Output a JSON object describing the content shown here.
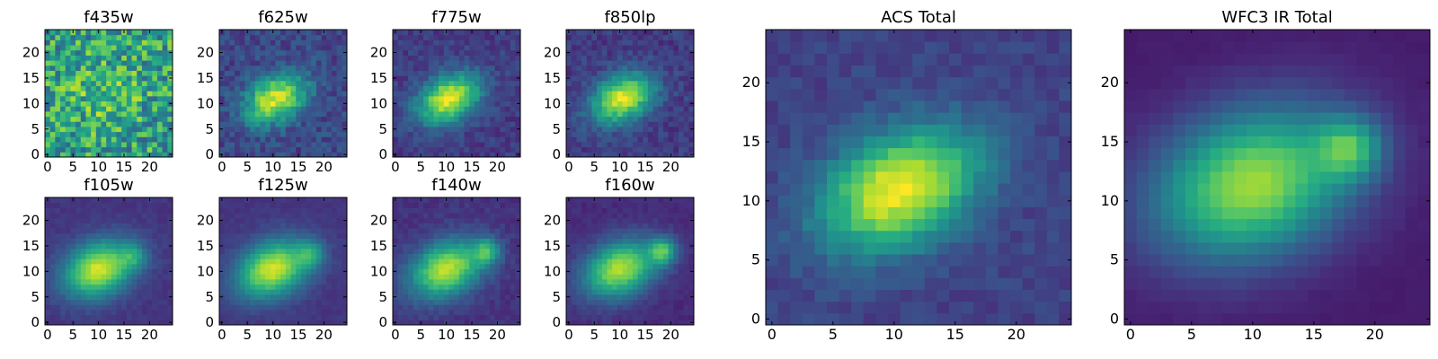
{
  "chart_data": {
    "type": "heatmap",
    "colormap": "viridis",
    "grid": false,
    "panels": [
      {
        "title": "f435w",
        "size": "small",
        "xlim": [
          0,
          24
        ],
        "ylim": [
          0,
          24
        ],
        "xticks": [
          0,
          5,
          10,
          15,
          20
        ],
        "yticks": [
          0,
          5,
          10,
          15,
          20
        ],
        "peak": {
          "x": 11,
          "y": 12
        },
        "peak_amp": 0.12,
        "spread": [
          6,
          4
        ],
        "angle_deg": -25,
        "noise": 0.55,
        "base": 0.58,
        "companion": null
      },
      {
        "title": "f625w",
        "size": "small",
        "xlim": [
          0,
          24
        ],
        "ylim": [
          0,
          24
        ],
        "xticks": [
          0,
          5,
          10,
          15,
          20
        ],
        "yticks": [
          0,
          5,
          10,
          15,
          20
        ],
        "peak": {
          "x": 10.5,
          "y": 11
        },
        "peak_amp": 0.72,
        "spread": [
          4.5,
          3
        ],
        "angle_deg": -28,
        "noise": 0.2,
        "base": 0.22,
        "companion": null
      },
      {
        "title": "f775w",
        "size": "small",
        "xlim": [
          0,
          24
        ],
        "ylim": [
          0,
          24
        ],
        "xticks": [
          0,
          5,
          10,
          15,
          20
        ],
        "yticks": [
          0,
          5,
          10,
          15,
          20
        ],
        "peak": {
          "x": 10.5,
          "y": 11
        },
        "peak_amp": 0.8,
        "spread": [
          4.5,
          3
        ],
        "angle_deg": -28,
        "noise": 0.14,
        "base": 0.18,
        "companion": null
      },
      {
        "title": "f850lp",
        "size": "small",
        "xlim": [
          0,
          24
        ],
        "ylim": [
          0,
          24
        ],
        "xticks": [
          0,
          5,
          10,
          15,
          20
        ],
        "yticks": [
          0,
          5,
          10,
          15,
          20
        ],
        "peak": {
          "x": 10.5,
          "y": 11
        },
        "peak_amp": 0.78,
        "spread": [
          4.5,
          3
        ],
        "angle_deg": -28,
        "noise": 0.15,
        "base": 0.18,
        "companion": null
      },
      {
        "title": "f105w",
        "size": "small",
        "xlim": [
          0,
          24
        ],
        "ylim": [
          0,
          24
        ],
        "xticks": [
          0,
          5,
          10,
          15,
          20
        ],
        "yticks": [
          0,
          5,
          10,
          15,
          20
        ],
        "peak": {
          "x": 10,
          "y": 10.5
        },
        "peak_amp": 0.78,
        "spread": [
          5,
          3.6
        ],
        "angle_deg": -25,
        "noise": 0.06,
        "base": 0.16,
        "companion": {
          "x": 17,
          "y": 13,
          "amp": 0.25
        }
      },
      {
        "title": "f125w",
        "size": "small",
        "xlim": [
          0,
          24
        ],
        "ylim": [
          0,
          24
        ],
        "xticks": [
          0,
          5,
          10,
          15,
          20
        ],
        "yticks": [
          0,
          5,
          10,
          15,
          20
        ],
        "peak": {
          "x": 10,
          "y": 10.5
        },
        "peak_amp": 0.78,
        "spread": [
          5.2,
          3.6
        ],
        "angle_deg": -25,
        "noise": 0.05,
        "base": 0.16,
        "companion": {
          "x": 17.5,
          "y": 13.5,
          "amp": 0.3
        }
      },
      {
        "title": "f140w",
        "size": "small",
        "xlim": [
          0,
          24
        ],
        "ylim": [
          0,
          24
        ],
        "xticks": [
          0,
          5,
          10,
          15,
          20
        ],
        "yticks": [
          0,
          5,
          10,
          15,
          20
        ],
        "peak": {
          "x": 10,
          "y": 10.5
        },
        "peak_amp": 0.76,
        "spread": [
          5.2,
          3.6
        ],
        "angle_deg": -25,
        "noise": 0.08,
        "base": 0.15,
        "companion": {
          "x": 18,
          "y": 14,
          "amp": 0.42
        }
      },
      {
        "title": "f160w",
        "size": "small",
        "xlim": [
          0,
          24
        ],
        "ylim": [
          0,
          24
        ],
        "xticks": [
          0,
          5,
          10,
          15,
          20
        ],
        "yticks": [
          0,
          5,
          10,
          15,
          20
        ],
        "peak": {
          "x": 10,
          "y": 10.5
        },
        "peak_amp": 0.76,
        "spread": [
          5.2,
          3.6
        ],
        "angle_deg": -25,
        "noise": 0.06,
        "base": 0.13,
        "companion": {
          "x": 18.5,
          "y": 14,
          "amp": 0.5
        }
      },
      {
        "title": "ACS Total",
        "size": "large",
        "xlim": [
          0,
          24
        ],
        "ylim": [
          0,
          24
        ],
        "xticks": [
          0,
          5,
          10,
          15,
          20
        ],
        "yticks": [
          0,
          5,
          10,
          15,
          20
        ],
        "peak": {
          "x": 10.5,
          "y": 11
        },
        "peak_amp": 0.8,
        "spread": [
          4.8,
          3.2
        ],
        "angle_deg": -28,
        "noise": 0.1,
        "base": 0.2,
        "companion": null
      },
      {
        "title": "WFC3 IR Total",
        "size": "large",
        "xlim": [
          0,
          24
        ],
        "ylim": [
          0,
          24
        ],
        "xticks": [
          0,
          5,
          10,
          15,
          20
        ],
        "yticks": [
          0,
          5,
          10,
          15,
          20
        ],
        "peak": {
          "x": 10,
          "y": 11.5
        },
        "peak_amp": 0.78,
        "spread": [
          5.8,
          4.2
        ],
        "angle_deg": -22,
        "noise": 0.02,
        "base": 0.08,
        "companion": {
          "x": 18,
          "y": 14.5,
          "amp": 0.45
        }
      }
    ]
  }
}
